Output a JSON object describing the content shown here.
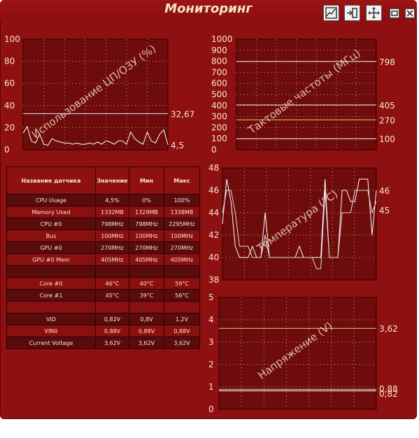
{
  "window": {
    "title": "Мониторинг"
  },
  "toolbar": {
    "icons": [
      "chart-icon",
      "dock-icon",
      "move-icon",
      "restore-icon",
      "close-icon"
    ]
  },
  "colors": {
    "background": "#8f1010",
    "plot_bg": "#6e0b0b",
    "line_white": "#ffffff",
    "line_yellow": "#e8d27a",
    "table_dark": "#5a0b0b",
    "table_light": "#8a0f0f"
  },
  "table": {
    "headers": [
      "Название датчика",
      "Значение",
      "Мин",
      "Макс"
    ],
    "rows": [
      [
        "CPU Usage",
        "4,5%",
        "0%",
        "100%"
      ],
      [
        "Memory Used",
        "1332MB",
        "1329MB",
        "1338MB"
      ],
      [
        "CPU #0",
        "798MHz",
        "798MHz",
        "2295MHz"
      ],
      [
        "Bus",
        "100MHz",
        "100MHz",
        "100MHz"
      ],
      [
        "GPU #0",
        "270MHz",
        "270MHz",
        "270MHz"
      ],
      [
        "GPU #0 Mem",
        "405MHz",
        "405MHz",
        "405MHz"
      ],
      [
        "",
        "",
        "",
        ""
      ],
      [
        "Core #0",
        "46°C",
        "40°C",
        "59°C"
      ],
      [
        "Core #1",
        "45°C",
        "39°C",
        "56°C"
      ],
      [
        "",
        "",
        "",
        ""
      ],
      [
        "VID",
        "0,82V",
        "0,8V",
        "1,2V"
      ],
      [
        "VIN0",
        "0,88V",
        "0,88V",
        "0,88V"
      ],
      [
        "Current Voltage",
        "3,62V",
        "3,62V",
        "3,62V"
      ]
    ]
  },
  "chart_data": [
    {
      "type": "line",
      "title": "Использование ЦП/ОЗУ (%)",
      "ylim": [
        0,
        100
      ],
      "yticks": [
        "0",
        "20",
        "40",
        "60",
        "80",
        "100"
      ],
      "series": [
        {
          "color": "#e8e8ff",
          "values": [
            32.67,
            32.67,
            32.67,
            32.67,
            32.67,
            32.67,
            32.67,
            32.67,
            32.67,
            32.67,
            32.67,
            32.67,
            32.67,
            32.67,
            32.67,
            32.67,
            32.67,
            32.67,
            32.67,
            32.67,
            32.67,
            32.67,
            32.67,
            32.67,
            32.67,
            32.67,
            32.67,
            32.67,
            32.67,
            32.67,
            32.67,
            32.67,
            32.67,
            32.67,
            32.67,
            32.67
          ]
        },
        {
          "color": "#ffffff",
          "values": [
            15,
            21,
            8,
            6,
            14,
            5,
            4,
            10,
            8,
            7,
            6,
            6,
            5,
            6,
            5,
            5,
            6,
            5,
            7,
            5,
            8,
            7,
            5,
            8,
            8,
            5,
            16,
            10,
            7,
            5,
            16,
            8,
            6,
            14,
            18,
            4.5
          ]
        }
      ],
      "end_labels": [
        "32,67",
        "4,5"
      ]
    },
    {
      "type": "line",
      "title": "Тактовые частоты (МГц)",
      "ylim": [
        0,
        1000
      ],
      "yticks": [
        "0",
        "100",
        "200",
        "300",
        "400",
        "500",
        "600",
        "700",
        "800",
        "900",
        "1000"
      ],
      "series": [
        {
          "color": "#f2f2f2",
          "values": [
            798,
            798
          ]
        },
        {
          "color": "#f2f2f2",
          "values": [
            405,
            405
          ]
        },
        {
          "color": "#e8d27a",
          "values": [
            270,
            270
          ]
        },
        {
          "color": "#f2f2f2",
          "values": [
            100,
            100
          ]
        }
      ],
      "end_labels": [
        "798",
        "405",
        "270",
        "100"
      ]
    },
    {
      "type": "line",
      "title": "Температура (°C)",
      "ylim": [
        38,
        48
      ],
      "yticks": [
        "38",
        "40",
        "42",
        "44",
        "46",
        "48"
      ],
      "series": [
        {
          "color": "#ffffff",
          "values": [
            43,
            47,
            45,
            41,
            40,
            40,
            40,
            41,
            40,
            40,
            44,
            40,
            40,
            40,
            40,
            40,
            40,
            40,
            41,
            40,
            40,
            40,
            40,
            40,
            47,
            40,
            40,
            40,
            46,
            46,
            45,
            45,
            47,
            47,
            47,
            42,
            46
          ]
        },
        {
          "color": "#dddddd",
          "values": [
            44,
            46,
            46,
            44,
            41,
            41,
            41,
            40,
            40,
            40,
            42,
            40,
            40,
            40,
            40,
            40,
            40,
            40,
            40,
            40,
            40,
            40,
            39,
            39,
            46,
            40,
            40,
            40,
            44,
            44,
            44,
            46,
            46,
            46,
            46,
            44,
            45
          ]
        }
      ],
      "end_labels": [
        "46",
        "45"
      ]
    },
    {
      "type": "line",
      "title": "Напряжение (V)",
      "ylim": [
        0,
        5
      ],
      "yticks": [
        "0",
        "1",
        "2",
        "3",
        "4",
        "5"
      ],
      "series": [
        {
          "color": "#e8d27a",
          "values": [
            3.62,
            3.62
          ]
        },
        {
          "color": "#f2f2f2",
          "values": [
            0.88,
            0.88
          ]
        },
        {
          "color": "#f2f2f2",
          "values": [
            0.82,
            0.82
          ]
        }
      ],
      "end_labels": [
        "3,62",
        "0,88",
        "0,82"
      ]
    }
  ]
}
